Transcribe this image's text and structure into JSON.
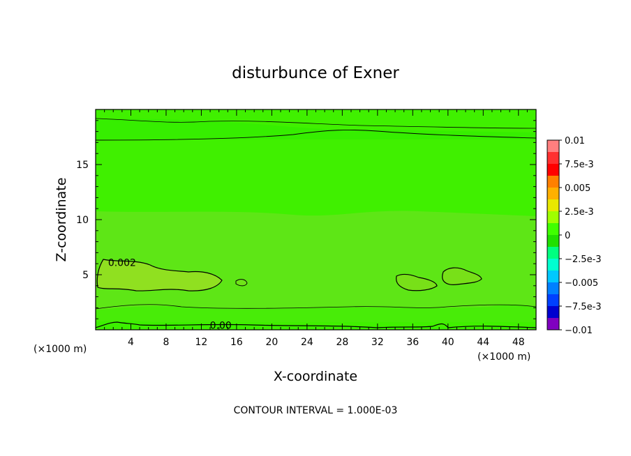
{
  "chart_data": {
    "type": "heatmap",
    "title": "disturbunce of Exner",
    "xlabel": "X-coordinate",
    "ylabel": "Z-coordinate",
    "x_unit_left": "(×1000 m)",
    "x_unit_right": "(×1000 m)",
    "xlim": [
      0,
      50
    ],
    "ylim": [
      0,
      20
    ],
    "x_ticks": [
      4,
      8,
      12,
      16,
      20,
      24,
      28,
      32,
      36,
      40,
      44,
      48
    ],
    "x_tick_labels": [
      "4",
      "8",
      "12",
      "16",
      "20",
      "24",
      "28",
      "32",
      "36",
      "40",
      "44",
      "48"
    ],
    "y_ticks": [
      5,
      10,
      15
    ],
    "y_tick_labels": [
      "5",
      "10",
      "15"
    ],
    "contour_labels": [
      {
        "text": "0.002",
        "x": 3.0,
        "z": 6.1
      },
      {
        "text": "0.00",
        "x": 14.2,
        "z": 0.4
      }
    ],
    "colorbar": {
      "labels": [
        "0.01",
        "7.5e-3",
        "0.005",
        "2.5e-3",
        "0",
        "−2.5e-3",
        "−0.005",
        "−7.5e-3",
        "−0.01"
      ],
      "colors": [
        "#ff7f7f",
        "#ff3030",
        "#ff0000",
        "#ff8000",
        "#ffb000",
        "#e8e800",
        "#a0ff00",
        "#40ff00",
        "#20e000",
        "#00ff80",
        "#00ffd0",
        "#00c8ff",
        "#0080ff",
        "#0040ff",
        "#0000d0",
        "#8000c0"
      ],
      "min": -0.01,
      "max": 0.01
    },
    "note": "CONTOUR INTERVAL = 1.000E-03"
  }
}
